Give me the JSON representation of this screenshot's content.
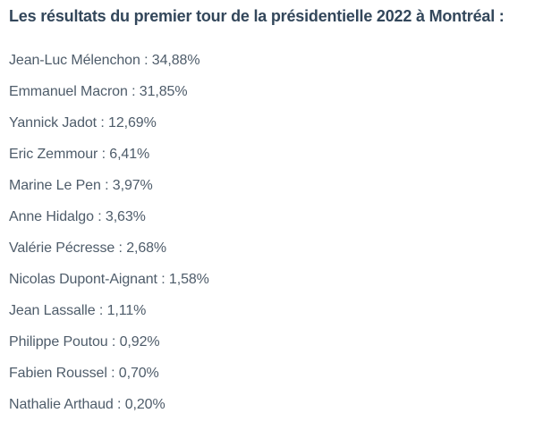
{
  "title": "Les résultats du premier tour de la présidentielle 2022 à Montréal :",
  "results": [
    {
      "candidate": "Jean-Luc Mélenchon",
      "percentage": "34,88%",
      "text": "Jean-Luc Mélenchon : 34,88%"
    },
    {
      "candidate": "Emmanuel Macron",
      "percentage": "31,85%",
      "text": "Emmanuel Macron : 31,85%"
    },
    {
      "candidate": "Yannick Jadot",
      "percentage": "12,69%",
      "text": "Yannick Jadot : 12,69%"
    },
    {
      "candidate": "Eric Zemmour",
      "percentage": "6,41%",
      "text": "Eric Zemmour : 6,41%"
    },
    {
      "candidate": "Marine Le Pen",
      "percentage": "3,97%",
      "text": "Marine Le Pen : 3,97%"
    },
    {
      "candidate": "Anne Hidalgo",
      "percentage": "3,63%",
      "text": "Anne Hidalgo : 3,63%"
    },
    {
      "candidate": "Valérie Pécresse",
      "percentage": "2,68%",
      "text": "Valérie Pécresse : 2,68%"
    },
    {
      "candidate": "Nicolas Dupont-Aignant",
      "percentage": "1,58%",
      "text": "Nicolas Dupont-Aignant : 1,58%"
    },
    {
      "candidate": "Jean Lassalle",
      "percentage": "1,11%",
      "text": "Jean Lassalle : 1,11%"
    },
    {
      "candidate": "Philippe Poutou",
      "percentage": "0,92%",
      "text": "Philippe Poutou : 0,92%"
    },
    {
      "candidate": "Fabien Roussel",
      "percentage": "0,70%",
      "text": "Fabien Roussel : 0,70%"
    },
    {
      "candidate": "Nathalie Arthaud",
      "percentage": "0,20%",
      "text": "Nathalie Arthaud : 0,20%"
    }
  ],
  "colors": {
    "title": "#33475b",
    "body_text": "#4e5c6a",
    "background": "#ffffff"
  }
}
